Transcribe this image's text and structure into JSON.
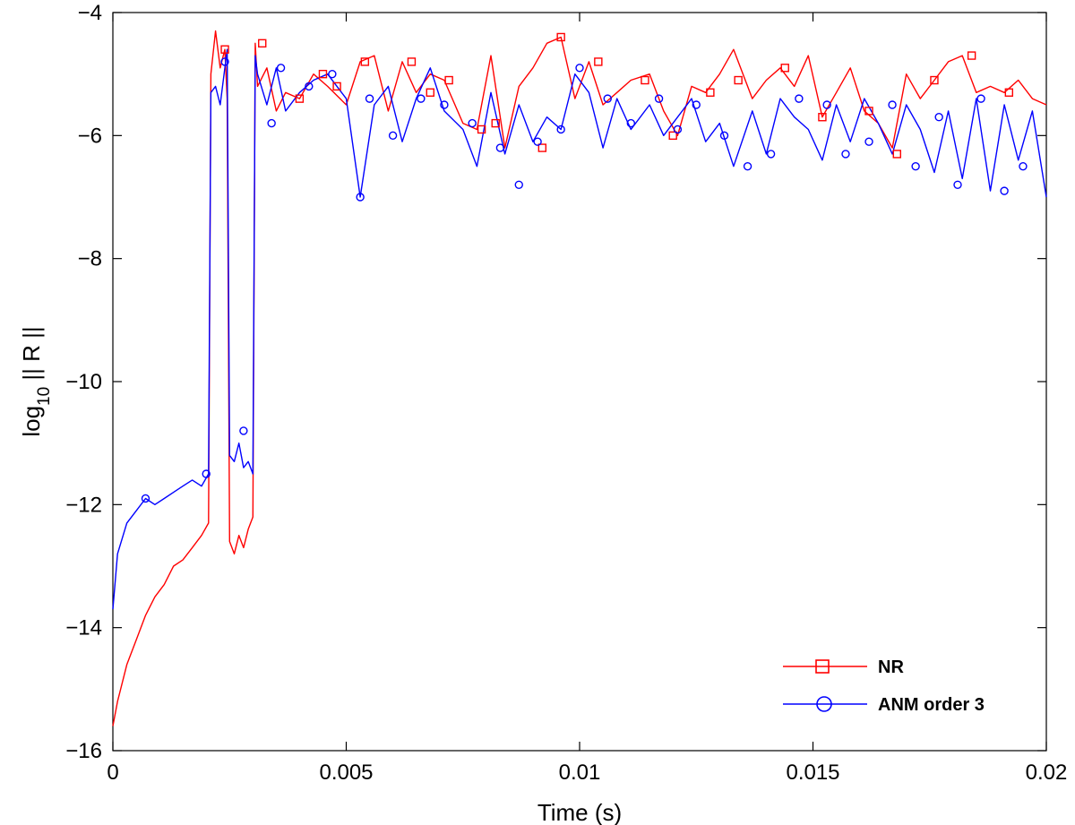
{
  "chart_data": {
    "type": "line",
    "title": "",
    "xlabel": "Time (s)",
    "ylabel_main": "log",
    "ylabel_sub": "10",
    "ylabel_rest": " || R ||",
    "xlim": [
      0,
      0.02
    ],
    "ylim": [
      -16,
      -4
    ],
    "x_ticks": [
      0,
      0.005,
      0.01,
      0.015,
      0.02
    ],
    "x_tick_labels": [
      "0",
      "0.005",
      "0.01",
      "0.015",
      "0.02"
    ],
    "y_ticks": [
      -16,
      -14,
      -12,
      -10,
      -8,
      -6,
      -4
    ],
    "y_tick_labels": [
      "−16",
      "−14",
      "−12",
      "−10",
      "−8",
      "−6",
      "−4"
    ],
    "grid": false,
    "legend_position": "bottom-right",
    "series": [
      {
        "name": "NR",
        "color": "#ff0000",
        "marker": "square",
        "x": [
          0,
          0.0001,
          0.0003,
          0.0005,
          0.0007,
          0.0009,
          0.0011,
          0.0013,
          0.0015,
          0.0017,
          0.0019,
          0.00205,
          0.0021,
          0.0022,
          0.0023,
          0.0024,
          0.00245,
          0.0025,
          0.0026,
          0.0027,
          0.0028,
          0.0029,
          0.003,
          0.00305,
          0.0031,
          0.0033,
          0.0035,
          0.0037,
          0.004,
          0.0043,
          0.0046,
          0.005,
          0.0053,
          0.0056,
          0.0059,
          0.0062,
          0.0065,
          0.0068,
          0.0071,
          0.0075,
          0.0078,
          0.0081,
          0.0084,
          0.0087,
          0.009,
          0.0093,
          0.0096,
          0.0099,
          0.0102,
          0.0105,
          0.0108,
          0.0111,
          0.0115,
          0.0118,
          0.0121,
          0.0124,
          0.0127,
          0.013,
          0.0133,
          0.0137,
          0.014,
          0.0143,
          0.0146,
          0.0149,
          0.0152,
          0.0155,
          0.0158,
          0.0161,
          0.0164,
          0.0167,
          0.017,
          0.0173,
          0.0176,
          0.0179,
          0.0182,
          0.0185,
          0.0188,
          0.0191,
          0.0194,
          0.0197,
          0.02
        ],
        "y": [
          -15.6,
          -15.2,
          -14.6,
          -14.2,
          -13.8,
          -13.5,
          -13.3,
          -13.0,
          -12.9,
          -12.7,
          -12.5,
          -12.3,
          -5.0,
          -4.3,
          -4.9,
          -4.6,
          -5.4,
          -12.6,
          -12.8,
          -12.5,
          -12.7,
          -12.4,
          -12.2,
          -4.5,
          -5.2,
          -4.9,
          -5.6,
          -5.3,
          -5.4,
          -5.0,
          -5.2,
          -5.5,
          -4.8,
          -4.7,
          -5.6,
          -4.8,
          -5.3,
          -5.0,
          -5.1,
          -5.8,
          -5.9,
          -4.7,
          -6.2,
          -5.2,
          -4.9,
          -4.5,
          -4.4,
          -5.4,
          -4.8,
          -5.5,
          -5.3,
          -5.1,
          -5.0,
          -5.6,
          -6.0,
          -5.2,
          -5.3,
          -5.0,
          -4.6,
          -5.4,
          -5.1,
          -4.9,
          -5.2,
          -4.7,
          -5.7,
          -5.3,
          -4.9,
          -5.6,
          -5.8,
          -6.2,
          -5.0,
          -5.4,
          -5.1,
          -4.8,
          -4.7,
          -5.3,
          -5.2,
          -5.3,
          -5.1,
          -5.4,
          -5.5
        ],
        "marker_points": [
          [
            0.0024,
            -4.6
          ],
          [
            0.0032,
            -4.5
          ],
          [
            0.004,
            -5.4
          ],
          [
            0.0045,
            -5.0
          ],
          [
            0.0048,
            -5.2
          ],
          [
            0.0054,
            -4.8
          ],
          [
            0.0064,
            -4.8
          ],
          [
            0.0068,
            -5.3
          ],
          [
            0.0072,
            -5.1
          ],
          [
            0.0079,
            -5.9
          ],
          [
            0.0082,
            -5.8
          ],
          [
            0.0092,
            -6.2
          ],
          [
            0.0096,
            -4.4
          ],
          [
            0.0104,
            -4.8
          ],
          [
            0.0114,
            -5.1
          ],
          [
            0.012,
            -6.0
          ],
          [
            0.0128,
            -5.3
          ],
          [
            0.0134,
            -5.1
          ],
          [
            0.0144,
            -4.9
          ],
          [
            0.0152,
            -5.7
          ],
          [
            0.0162,
            -5.6
          ],
          [
            0.0168,
            -6.3
          ],
          [
            0.0176,
            -5.1
          ],
          [
            0.0184,
            -4.7
          ],
          [
            0.0192,
            -5.3
          ]
        ]
      },
      {
        "name": "ANM order 3",
        "color": "#0000ff",
        "marker": "circle",
        "x": [
          0,
          0.0001,
          0.0003,
          0.0005,
          0.0007,
          0.0009,
          0.0011,
          0.0013,
          0.0015,
          0.0017,
          0.0019,
          0.00205,
          0.0021,
          0.0022,
          0.0023,
          0.0024,
          0.00245,
          0.0025,
          0.0026,
          0.0027,
          0.0028,
          0.0029,
          0.003,
          0.00305,
          0.0031,
          0.0033,
          0.0035,
          0.0037,
          0.004,
          0.0043,
          0.0046,
          0.005,
          0.0053,
          0.0056,
          0.0059,
          0.0062,
          0.0065,
          0.0068,
          0.0071,
          0.0075,
          0.0078,
          0.0081,
          0.0084,
          0.0087,
          0.009,
          0.0093,
          0.0096,
          0.0099,
          0.0102,
          0.0105,
          0.0108,
          0.0111,
          0.0115,
          0.0118,
          0.0121,
          0.0124,
          0.0127,
          0.013,
          0.0133,
          0.0137,
          0.014,
          0.0143,
          0.0146,
          0.0149,
          0.0152,
          0.0155,
          0.0158,
          0.0161,
          0.0164,
          0.0167,
          0.017,
          0.0173,
          0.0176,
          0.0179,
          0.0182,
          0.0185,
          0.0188,
          0.0191,
          0.0194,
          0.0197,
          0.02
        ],
        "y": [
          -13.7,
          -12.8,
          -12.3,
          -12.1,
          -11.9,
          -12.0,
          -11.9,
          -11.8,
          -11.7,
          -11.6,
          -11.7,
          -11.5,
          -5.3,
          -5.2,
          -5.5,
          -4.9,
          -4.6,
          -11.2,
          -11.3,
          -11.0,
          -11.4,
          -11.3,
          -11.5,
          -4.7,
          -5.0,
          -5.5,
          -4.9,
          -5.6,
          -5.3,
          -5.1,
          -5.0,
          -5.4,
          -7.0,
          -5.5,
          -5.2,
          -6.1,
          -5.4,
          -4.9,
          -5.6,
          -5.9,
          -6.5,
          -5.3,
          -6.3,
          -5.5,
          -6.1,
          -5.7,
          -5.9,
          -5.0,
          -5.3,
          -6.2,
          -5.4,
          -5.9,
          -5.5,
          -6.0,
          -5.7,
          -5.4,
          -6.1,
          -5.8,
          -6.5,
          -5.6,
          -6.3,
          -5.4,
          -5.7,
          -5.9,
          -6.4,
          -5.5,
          -6.1,
          -5.4,
          -5.8,
          -6.3,
          -5.5,
          -5.9,
          -6.6,
          -5.6,
          -6.7,
          -5.4,
          -6.9,
          -5.5,
          -6.4,
          -5.6,
          -7.0
        ],
        "marker_points": [
          [
            0.0007,
            -11.9
          ],
          [
            0.002,
            -11.5
          ],
          [
            0.0024,
            -4.8
          ],
          [
            0.0028,
            -10.8
          ],
          [
            0.0034,
            -5.8
          ],
          [
            0.0036,
            -4.9
          ],
          [
            0.0042,
            -5.2
          ],
          [
            0.0047,
            -5.0
          ],
          [
            0.0053,
            -7.0
          ],
          [
            0.0055,
            -5.4
          ],
          [
            0.006,
            -6.0
          ],
          [
            0.0066,
            -5.4
          ],
          [
            0.0071,
            -5.5
          ],
          [
            0.0077,
            -5.8
          ],
          [
            0.0083,
            -6.2
          ],
          [
            0.0087,
            -6.8
          ],
          [
            0.0091,
            -6.1
          ],
          [
            0.0096,
            -5.9
          ],
          [
            0.01,
            -4.9
          ],
          [
            0.0106,
            -5.4
          ],
          [
            0.0111,
            -5.8
          ],
          [
            0.0117,
            -5.4
          ],
          [
            0.0121,
            -5.9
          ],
          [
            0.0125,
            -5.5
          ],
          [
            0.0131,
            -6.0
          ],
          [
            0.0136,
            -6.5
          ],
          [
            0.0141,
            -6.3
          ],
          [
            0.0147,
            -5.4
          ],
          [
            0.0153,
            -5.5
          ],
          [
            0.0157,
            -6.3
          ],
          [
            0.0162,
            -6.1
          ],
          [
            0.0167,
            -5.5
          ],
          [
            0.0172,
            -6.5
          ],
          [
            0.0177,
            -5.7
          ],
          [
            0.0181,
            -6.8
          ],
          [
            0.0186,
            -5.4
          ],
          [
            0.0191,
            -6.9
          ],
          [
            0.0195,
            -6.5
          ]
        ]
      }
    ]
  }
}
